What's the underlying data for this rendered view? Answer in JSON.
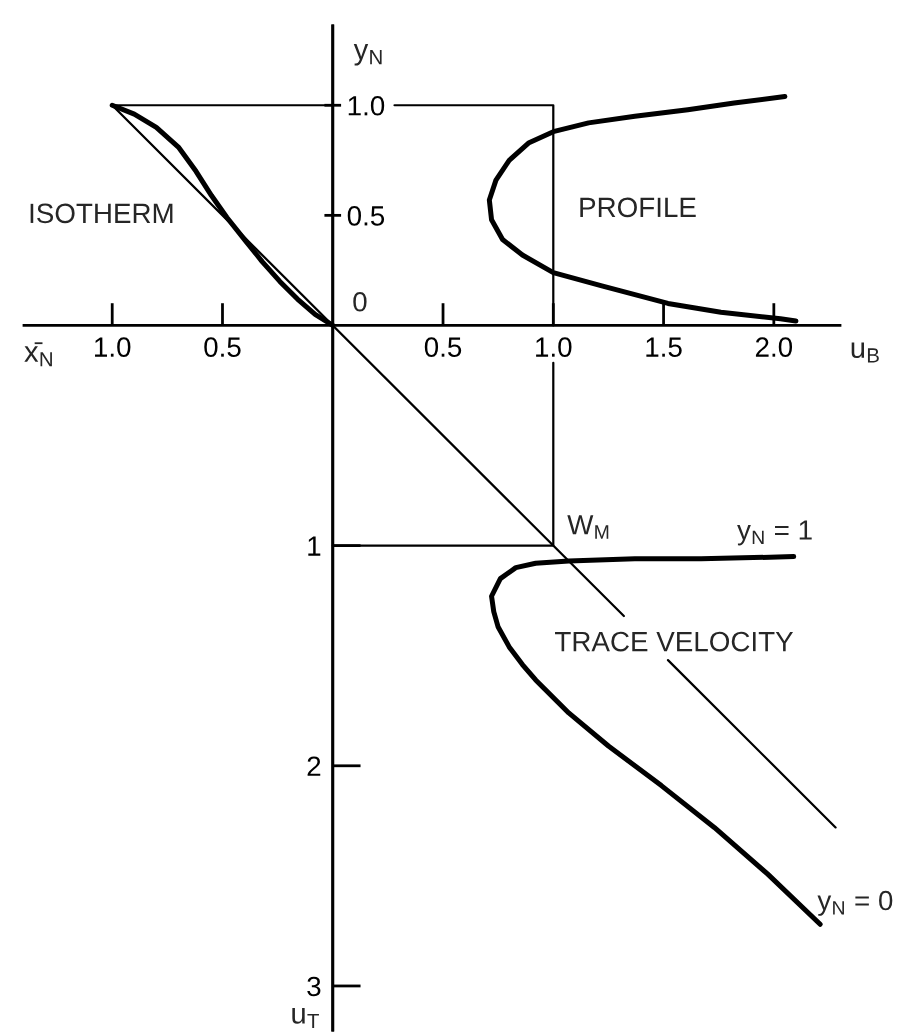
{
  "chart_data": {
    "type": "line",
    "xlabel": "u$_{B}$",
    "ylabel": "u$_{T}$",
    "y2label": "y$_{N}$",
    "annotations": [
      "ISOTHERM",
      "PROFILE",
      "TRACE VELOCITY",
      "x̄$_{N}$",
      {
        "text": "0",
        "x": 0,
        "y": 0
      },
      {
        "text": "W$_{M}$",
        "x": 1.0,
        "y": -1.0
      },
      {
        "text": "y$_{N}$ = 1",
        "x": 2.09,
        "y": -1.05
      },
      {
        "text": "y$_{N}$ = 0",
        "x": 2.21,
        "y": -2.72
      }
    ],
    "xlim": [
      -1.4,
      2.3
    ],
    "ylim": [
      -3.2,
      1.36
    ],
    "y2lim": [
      -3.2,
      1.36
    ],
    "xticks": [
      {
        "value": -1,
        "label": "1.0"
      },
      {
        "value": -0.5,
        "label": "0.5"
      },
      0.5,
      {
        "value": 1,
        "label": "1.0"
      },
      1.5,
      {
        "value": 2,
        "label": "2.0"
      }
    ],
    "yticks": [
      {
        "value": -3,
        "label": "3"
      },
      {
        "value": -2,
        "label": "2"
      },
      {
        "value": -1,
        "label": "1"
      }
    ],
    "y2ticks": [
      0.5,
      {
        "value": 1,
        "label": "1.0"
      }
    ],
    "series": [
      {
        "color": "#000000",
        "x": [
          -1.0,
          -0.9,
          -0.8,
          -0.7,
          -0.62,
          -0.55,
          -0.48,
          -0.4,
          -0.32,
          -0.24,
          -0.16,
          -0.08,
          0
        ],
        "values": [
          1.0,
          0.96,
          0.9,
          0.81,
          0.7,
          0.59,
          0.49,
          0.39,
          0.29,
          0.2,
          0.12,
          0.05,
          0
        ]
      },
      {
        "color": "#000000",
        "x": [
          2.05,
          1.82,
          1.61,
          1.37,
          1.16,
          1.0,
          0.89,
          0.8,
          0.74,
          0.71,
          0.72,
          0.77,
          0.86,
          1.0,
          1.22,
          1.52,
          1.76,
          2.03,
          2.1
        ],
        "values": [
          1.04,
          1.01,
          0.98,
          0.95,
          0.92,
          0.88,
          0.83,
          0.75,
          0.66,
          0.57,
          0.48,
          0.39,
          0.32,
          0.24,
          0.18,
          0.1,
          0.06,
          0.03,
          0.02
        ]
      },
      {
        "color": "#000000",
        "x": [
          2.09,
          1.67,
          1.37,
          1.07,
          0.92,
          0.83,
          0.76,
          0.72,
          0.73,
          0.75,
          0.8,
          0.86,
          0.92,
          1.07,
          1.25,
          1.49,
          1.73,
          1.97,
          2.21
        ],
        "values": [
          -1.05,
          -1.06,
          -1.06,
          -1.07,
          -1.08,
          -1.1,
          -1.15,
          -1.23,
          -1.3,
          -1.37,
          -1.46,
          -1.54,
          -1.61,
          -1.76,
          -1.91,
          -2.09,
          -2.28,
          -2.49,
          -2.72
        ]
      },
      {
        "color": "#000000",
        "x": [
          -1.0,
          0,
          null,
          0.28,
          1.0,
          1.0,
          null,
          1.0,
          1.0,
          0
        ],
        "values": [
          1.0,
          1.0,
          null,
          1.0,
          1.0,
          0,
          null,
          -0.17,
          -1.0,
          -1.0
        ]
      },
      {
        "color": "#000000",
        "x": [
          -1.0,
          1.32,
          null,
          1.52,
          2.28
        ],
        "values": [
          1.0,
          -1.32,
          null,
          -1.52,
          -2.28
        ]
      }
    ]
  }
}
